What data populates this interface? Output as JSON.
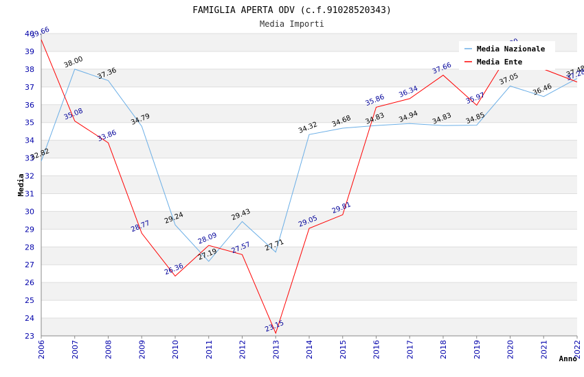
{
  "chart_data": {
    "type": "line",
    "title": "FAMIGLIA APERTA ODV (c.f.91028520343)",
    "subtitle": "Media Importi",
    "xlabel": "Anno",
    "ylabel": "Media",
    "ylim": [
      23,
      40
    ],
    "grid": true,
    "legend_position": "top-right",
    "x": [
      "2006",
      "2007",
      "2008",
      "2009",
      "2010",
      "2011",
      "2012",
      "2013",
      "2014",
      "2015",
      "2016",
      "2017",
      "2018",
      "2019",
      "2020",
      "2021",
      "2022"
    ],
    "series": [
      {
        "name": "Media Nazionale",
        "color": "#6aaee6",
        "values": [
          32.82,
          38.0,
          37.36,
          34.79,
          29.24,
          27.19,
          29.43,
          27.71,
          34.32,
          34.68,
          34.83,
          34.94,
          34.83,
          34.85,
          37.05,
          36.46,
          37.48
        ]
      },
      {
        "name": "Media Ente",
        "color": "#ff0000",
        "values": [
          39.66,
          35.08,
          33.86,
          28.77,
          26.36,
          28.09,
          27.57,
          23.15,
          29.05,
          29.81,
          35.86,
          36.34,
          37.66,
          35.97,
          39.0,
          38.0,
          37.28
        ]
      }
    ]
  }
}
